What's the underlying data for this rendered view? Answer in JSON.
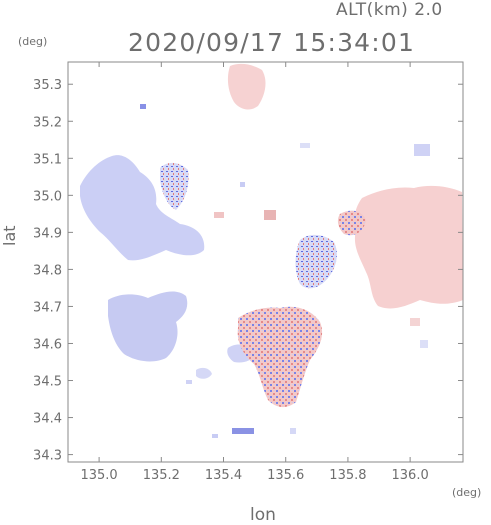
{
  "header": {
    "altitude_label": "ALT(km) 2.0",
    "timestamp": "2020/09/17 15:34:01"
  },
  "axes": {
    "unit_left": "(deg)",
    "unit_bottom": "(deg)",
    "y_label": "lat",
    "x_label": "lon"
  },
  "chart_data": {
    "type": "heatmap",
    "xlabel": "lon",
    "ylabel": "lat",
    "xlim": [
      134.9,
      136.17
    ],
    "ylim": [
      34.28,
      35.36
    ],
    "x_ticks": [
      135.0,
      135.2,
      135.4,
      135.6,
      135.8,
      136.0
    ],
    "x_tick_labels": [
      "135.0",
      "135.2",
      "135.4",
      "135.6",
      "135.8",
      "136.0"
    ],
    "y_ticks": [
      35.3,
      35.2,
      35.1,
      35.0,
      34.9,
      34.8,
      34.7,
      34.6,
      34.5,
      34.4,
      34.3
    ],
    "y_tick_labels": [
      "35.3",
      "35.2",
      "35.1",
      "35.0",
      "34.9",
      "34.8",
      "34.7",
      "34.6",
      "34.5",
      "34.4",
      "34.3"
    ],
    "colors": {
      "approaching": "#c8ccf4",
      "receding": "#f6d0d0",
      "strong_blue": "#6a78e0",
      "strong_red": "#e06a6a",
      "frame": "#8a8a8a"
    }
  }
}
